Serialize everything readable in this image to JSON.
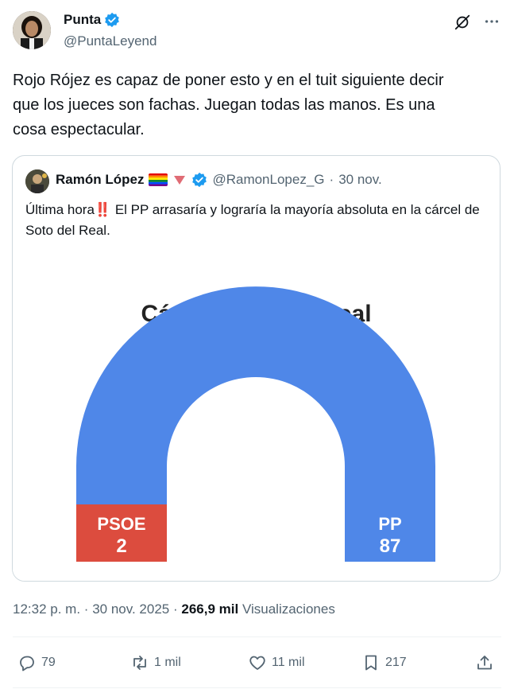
{
  "tweet": {
    "author_name": "Punta",
    "author_handle": "@PuntaLeyend",
    "text": "Rojo Rójez es capaz de poner esto y en el tuit siguiente decir\nque los jueces son fachas. Juegan todas las manos. Es una\ncosa espectacular.",
    "time": "12:32 p. m.",
    "date": "30 nov. 2025",
    "views_count": "266,9 mil",
    "views_label": "Visualizaciones",
    "sep": "·"
  },
  "quote": {
    "author_name": "Ramón López",
    "author_handle": "@RamonLopez_G",
    "sep": "·",
    "date": "30 nov.",
    "text_before": "Última hora",
    "text_emoji": "‼️",
    "text_after": " El PP arrasaría y lograría la mayoría absoluta en la cárcel de Soto del Real."
  },
  "chart_data": {
    "type": "parliament-semicircle",
    "title": "Cárcel Soto del Real",
    "series": [
      {
        "name": "PSOE",
        "value": 2,
        "color": "#dc4c3e"
      },
      {
        "name": "PP",
        "value": 87,
        "color": "#4f87e8"
      }
    ]
  },
  "actions": {
    "replies": "79",
    "reposts": "1 mil",
    "likes": "11 mil",
    "bookmarks": "217"
  },
  "colors": {
    "verified": "#1d9bf0",
    "text": "#0f1419",
    "muted": "#536471",
    "border": "#cfd9de"
  }
}
